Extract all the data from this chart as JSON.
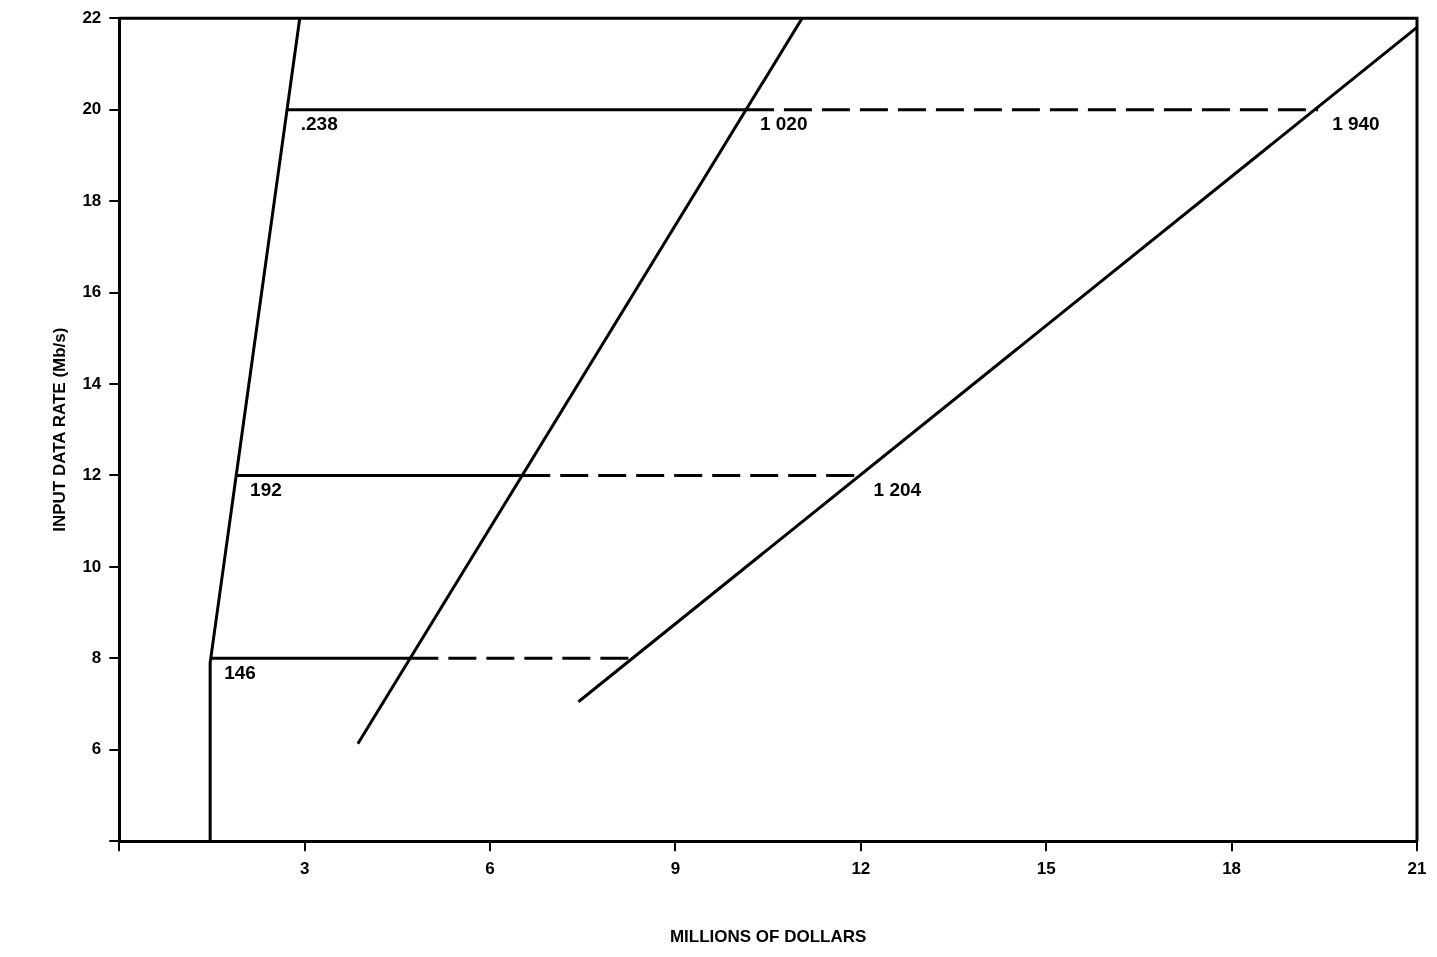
{
  "chart_data": {
    "type": "line",
    "xlabel": "MILLIONS OF DOLLARS",
    "ylabel": "INPUT DATA RATE (Mb/s)",
    "xlim": [
      0,
      21
    ],
    "xticks": [
      {
        "value": 0,
        "label": null
      },
      3,
      6,
      9,
      12,
      15,
      18,
      21
    ],
    "ylim": [
      4,
      22
    ],
    "yticks": [
      {
        "value": 4,
        "label": null
      },
      6,
      8,
      10,
      12,
      14,
      16,
      18,
      20,
      22
    ],
    "grid": false,
    "legend": false,
    "marker": "none",
    "series": [
      {
        "color": "#000000",
        "line_style": "solid",
        "x": [
          1.47,
          1.47,
          2.92
        ],
        "values": [
          4,
          7.9,
          22
        ]
      },
      {
        "color": "#000000",
        "line_style": "solid",
        "x": [
          3.86,
          11.05
        ],
        "values": [
          6.13,
          22
        ]
      },
      {
        "color": "#000000",
        "line_style": "solid",
        "x": [
          7.43,
          21
        ],
        "values": [
          7.05,
          21.8
        ]
      },
      {
        "color": "#000000",
        "line_style": "solid",
        "x": [
          2.71,
          10.14
        ],
        "values": [
          20,
          20
        ]
      },
      {
        "color": "#000000",
        "line_style": "dashed",
        "x": [
          10.14,
          19.4
        ],
        "values": [
          20,
          20
        ]
      },
      {
        "color": "#000000",
        "line_style": "solid",
        "x": [
          1.89,
          6.52
        ],
        "values": [
          12,
          12
        ]
      },
      {
        "color": "#000000",
        "line_style": "dashed",
        "x": [
          6.52,
          11.98
        ],
        "values": [
          12,
          12
        ]
      },
      {
        "color": "#000000",
        "line_style": "solid",
        "x": [
          1.47,
          4.71
        ],
        "values": [
          8,
          8
        ]
      },
      {
        "color": "#000000",
        "line_style": "dashed",
        "x": [
          4.71,
          8.3
        ],
        "values": [
          8,
          8
        ]
      }
    ],
    "annotations": [
      {
        "text": ".238",
        "x": 2.71,
        "y": 20
      },
      {
        "text": "1 020",
        "x": 10.14,
        "y": 20
      },
      {
        "text": "1 940",
        "x": 19.4,
        "y": 20
      },
      {
        "text": "192",
        "x": 1.89,
        "y": 12
      },
      {
        "text": "1 204",
        "x": 11.98,
        "y": 12
      },
      {
        "text": "146",
        "x": 1.47,
        "y": 8
      }
    ]
  }
}
